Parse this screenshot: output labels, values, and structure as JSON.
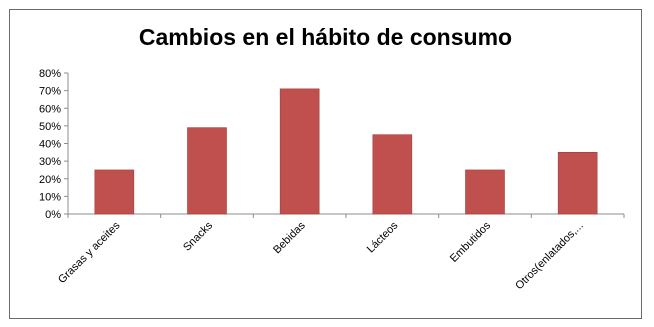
{
  "chart_data": {
    "type": "bar",
    "title": "Cambios en el hábito de consumo",
    "xlabel": "",
    "ylabel": "",
    "categories": [
      "Grasas y aceites",
      "Snacks",
      "Bebidas",
      "Lácteos",
      "Embutidos",
      "Otros(enlatados,..."
    ],
    "values": [
      25,
      49,
      71,
      45,
      25,
      35
    ],
    "ylim": [
      0,
      80
    ],
    "yticks": [
      "0%",
      "10%",
      "20%",
      "30%",
      "40%",
      "50%",
      "60%",
      "70%",
      "80%"
    ],
    "grid": false,
    "legend": "none",
    "colors": {
      "bar": "#c0504d",
      "bar_edge": "#a33d3a",
      "axis": "#8c8c8c"
    }
  }
}
